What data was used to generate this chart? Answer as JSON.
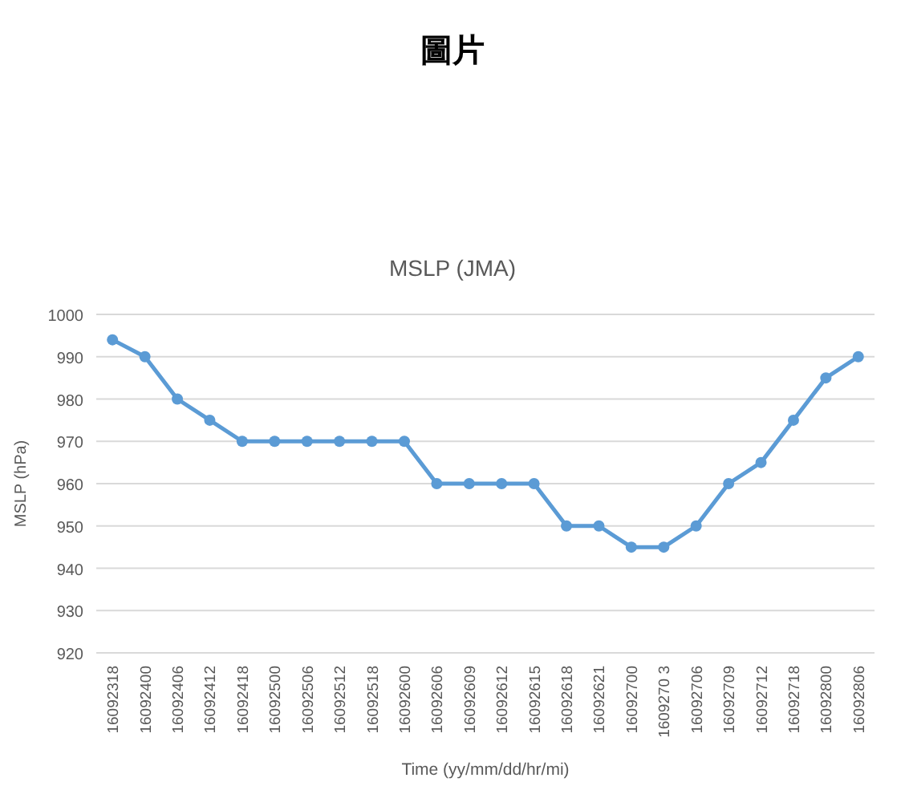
{
  "chart_data": {
    "type": "line",
    "title": "MSLP (JMA)",
    "xlabel": "Time (yy/mm/dd/hr/mi)",
    "ylabel": "MSLP (hPa)",
    "annotations": [
      "圖片"
    ],
    "categories": [
      "16092318",
      "16092400",
      "16092406",
      "16092412",
      "16092418",
      "16092500",
      "16092506",
      "16092512",
      "16092518",
      "16092600",
      "16092606",
      "16092609",
      "16092612",
      "16092615",
      "16092618",
      "16092621",
      "16092700",
      "1609270 3",
      "16092706",
      "16092709",
      "16092712",
      "16092718",
      "16092800",
      "16092806"
    ],
    "series": [
      {
        "color": "#5b9bd5",
        "values": [
          994,
          990,
          980,
          975,
          970,
          970,
          970,
          970,
          970,
          970,
          960,
          960,
          960,
          960,
          950,
          950,
          945,
          945,
          950,
          960,
          965,
          975,
          985,
          990
        ]
      }
    ],
    "ylim": [
      920,
      1000
    ],
    "yticks": [
      920,
      930,
      940,
      950,
      960,
      970,
      980,
      990,
      1000
    ],
    "grid": "y",
    "marker": "circle",
    "line_style": "solid"
  }
}
